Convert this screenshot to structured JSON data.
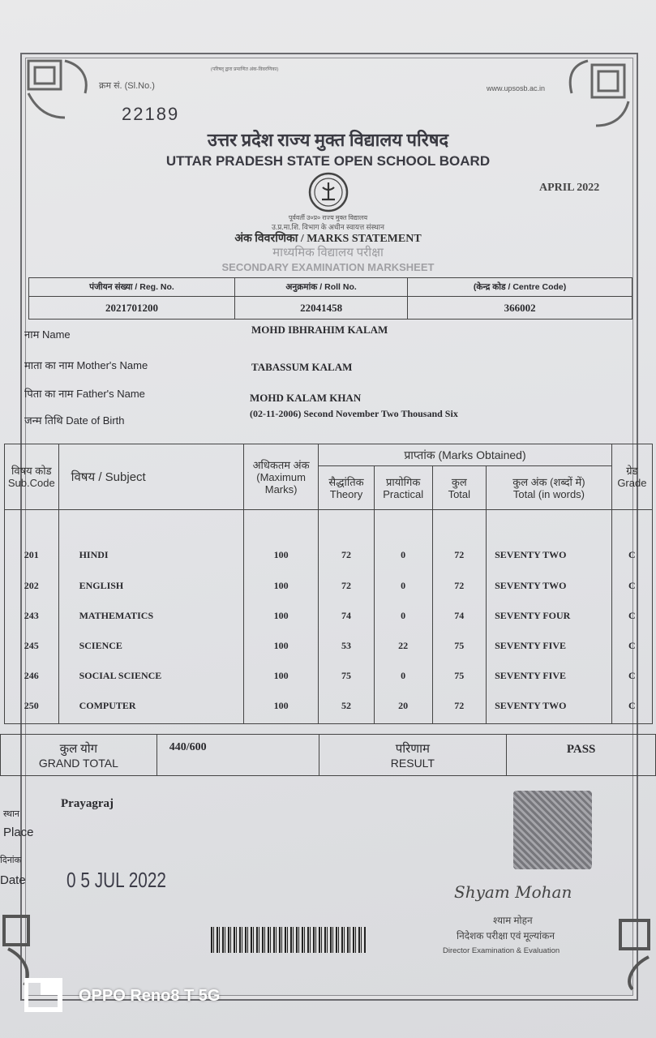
{
  "header": {
    "top_note": "(परिषद् द्वारा प्रमाणित अंक-विवरणिका)",
    "sl_no_label": "क्रम सं. (Sl.No.)",
    "sl_no": "22189",
    "website": "www.upsosb.ac.in",
    "board_hindi": "उत्तर प्रदेश राज्य मुक्त विद्यालय परिषद",
    "board_english": "UTTAR PRADESH STATE OPEN SCHOOL BOARD",
    "session": "APRIL 2022",
    "sub_line1": "पूर्ववर्ती उ०प्र० राज्य मुक्त विद्यालय",
    "sub_line2": "उ.प्र.मा.शि. विभाग के अधीन स्वायत्त संस्थान",
    "doc_title": "अंक विवरणिका / MARKS STATEMENT",
    "exam_hindi": "माध्यमिक विद्यालय परीक्षा",
    "exam_english": "SECONDARY EXAMINATION MARKSHEET"
  },
  "registration": {
    "reg_label": "पंजीयन संख्या / Reg. No.",
    "reg_no": "2021701200",
    "roll_label": "अनुक्रमांक / Roll No.",
    "roll_no": "22041458",
    "centre_label": "(केन्द्र कोड / Centre Code)",
    "centre_code": "366002"
  },
  "student": {
    "name_label": "नाम  Name",
    "name": "MOHD IBHRAHIM KALAM",
    "mother_label": "माता का नाम  Mother's Name",
    "mother": "TABASSUM KALAM",
    "father_label": "पिता का नाम  Father's Name",
    "father": "MOHD KALAM KHAN",
    "dob_label": "जन्म तिथि    Date of Birth",
    "dob": "(02-11-2006) Second November Two Thousand Six"
  },
  "marks_table": {
    "headers": {
      "code": [
        "विषय कोड",
        "Sub.Code"
      ],
      "subject": "विषय / Subject",
      "max": [
        "अधिकतम अंक",
        "(Maximum",
        "Marks)"
      ],
      "obtained": "प्राप्तांक (Marks Obtained)",
      "theory": [
        "सैद्धांतिक",
        "Theory"
      ],
      "practical": [
        "प्रायोगिक",
        "Practical"
      ],
      "total": [
        "कुल",
        "Total"
      ],
      "words": [
        "कुल अंक (शब्दों में)",
        "Total (in words)"
      ],
      "grade": [
        "ग्रेड",
        "Grade"
      ]
    },
    "rows": [
      {
        "code": "201",
        "subject": "HINDI",
        "max": "100",
        "theory": "72",
        "practical": "0",
        "total": "72",
        "words": "SEVENTY TWO",
        "grade": "C"
      },
      {
        "code": "202",
        "subject": "ENGLISH",
        "max": "100",
        "theory": "72",
        "practical": "0",
        "total": "72",
        "words": "SEVENTY TWO",
        "grade": "C"
      },
      {
        "code": "243",
        "subject": "MATHEMATICS",
        "max": "100",
        "theory": "74",
        "practical": "0",
        "total": "74",
        "words": "SEVENTY FOUR",
        "grade": "C"
      },
      {
        "code": "245",
        "subject": "SCIENCE",
        "max": "100",
        "theory": "53",
        "practical": "22",
        "total": "75",
        "words": "SEVENTY FIVE",
        "grade": "C"
      },
      {
        "code": "246",
        "subject": "SOCIAL SCIENCE",
        "max": "100",
        "theory": "75",
        "practical": "0",
        "total": "75",
        "words": "SEVENTY FIVE",
        "grade": "C"
      },
      {
        "code": "250",
        "subject": "COMPUTER",
        "max": "100",
        "theory": "52",
        "practical": "20",
        "total": "72",
        "words": "SEVENTY TWO",
        "grade": "C"
      }
    ]
  },
  "summary": {
    "grand_total_hindi": "कुल योग",
    "grand_total_label": "GRAND TOTAL",
    "grand_total": "440/600",
    "result_hindi": "परिणाम",
    "result_label": "RESULT",
    "result": "PASS"
  },
  "footer": {
    "place_hindi": "स्थान",
    "place_label": "Place",
    "place": "Prayagraj",
    "date_hindi": "दिनांक",
    "date_label": "Date",
    "date": "0 5 JUL 2022",
    "signature": "Shyam Mohan",
    "signatory_hindi": "श्याम मोहन",
    "designation_hindi": "निदेशक परीक्षा एवं मूल्यांकन",
    "designation": "Director Examination & Evaluation"
  },
  "watermark": "OPPO Reno8 T 5G"
}
